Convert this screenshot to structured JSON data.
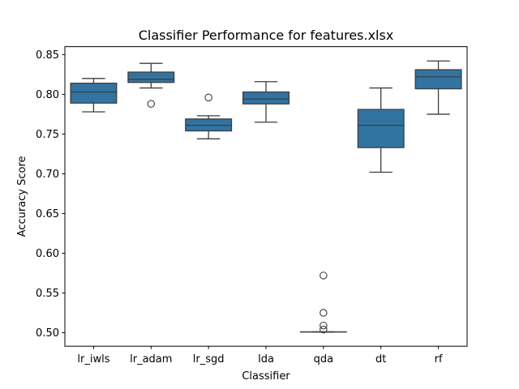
{
  "chart_data": {
    "type": "box",
    "title": "Classifier Performance for features.xlsx",
    "xlabel": "Classifier",
    "ylabel": "Accuracy Score",
    "ylim": [
      0.483,
      0.86
    ],
    "yticks": [
      "0.50",
      "0.55",
      "0.60",
      "0.65",
      "0.70",
      "0.75",
      "0.80",
      "0.85"
    ],
    "categories": [
      "lr_iwls",
      "lr_adam",
      "lr_sgd",
      "lda",
      "qda",
      "dt",
      "rf"
    ],
    "box_color": "#3274a1",
    "line_color": "#3d3d3d",
    "grid": false,
    "boxes": [
      {
        "name": "lr_iwls",
        "whislo": 0.778,
        "q1": 0.789,
        "med": 0.803,
        "q3": 0.814,
        "whishi": 0.82,
        "fliers": []
      },
      {
        "name": "lr_adam",
        "whislo": 0.808,
        "q1": 0.815,
        "med": 0.819,
        "q3": 0.828,
        "whishi": 0.839,
        "fliers": [
          0.788
        ]
      },
      {
        "name": "lr_sgd",
        "whislo": 0.744,
        "q1": 0.754,
        "med": 0.761,
        "q3": 0.769,
        "whishi": 0.773,
        "fliers": [
          0.796
        ]
      },
      {
        "name": "lda",
        "whislo": 0.765,
        "q1": 0.788,
        "med": 0.794,
        "q3": 0.803,
        "whishi": 0.816,
        "fliers": []
      },
      {
        "name": "qda",
        "whislo": 0.501,
        "q1": 0.501,
        "med": 0.501,
        "q3": 0.501,
        "whishi": 0.501,
        "fliers": [
          0.572,
          0.525,
          0.509,
          0.504
        ]
      },
      {
        "name": "dt",
        "whislo": 0.702,
        "q1": 0.733,
        "med": 0.761,
        "q3": 0.781,
        "whishi": 0.808,
        "fliers": []
      },
      {
        "name": "rf",
        "whislo": 0.775,
        "q1": 0.807,
        "med": 0.822,
        "q3": 0.831,
        "whishi": 0.842,
        "fliers": []
      }
    ]
  }
}
